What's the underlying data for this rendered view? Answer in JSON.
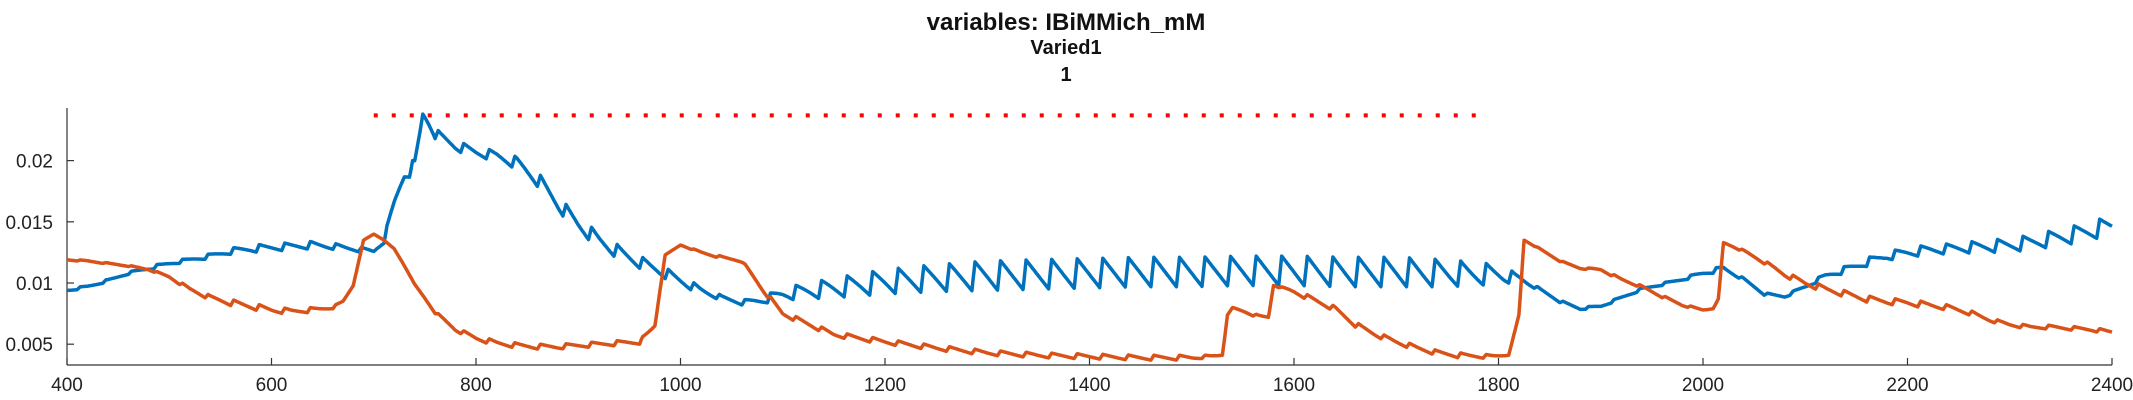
{
  "chart_data": {
    "type": "line",
    "title": "variables: IBiMMich_mM",
    "subtitle": [
      "Varied1",
      "1"
    ],
    "xlabel": "",
    "ylabel": "",
    "xlim": [
      400,
      2400
    ],
    "ylim": [
      0.0033,
      0.0243
    ],
    "xticks": [
      400,
      600,
      800,
      1000,
      1200,
      1400,
      1600,
      1800,
      2000,
      2200,
      2400
    ],
    "xtick_labels": [
      "400",
      "600",
      "800",
      "1000",
      "1200",
      "1400",
      "1600",
      "1800",
      "2000",
      "2200",
      "2400"
    ],
    "yticks": [
      0.005,
      0.01,
      0.015,
      0.02
    ],
    "ytick_labels": [
      "0.005",
      "0.01",
      "0.015",
      "0.02"
    ],
    "grid": false,
    "legend": "none",
    "series": [
      {
        "color": "#0072BD",
        "x": [
          400,
          420,
          440,
          460,
          480,
          500,
          520,
          540,
          560,
          580,
          600,
          620,
          640,
          660,
          680,
          690,
          700,
          710,
          720,
          730,
          740,
          748,
          760,
          780,
          800,
          820,
          840,
          860,
          880,
          900,
          920,
          940,
          960,
          980,
          1000,
          1020,
          1040,
          1060,
          1080,
          1100,
          1150,
          1200,
          1250,
          1300,
          1350,
          1400,
          1450,
          1500,
          1550,
          1600,
          1650,
          1700,
          1750,
          1800,
          1820,
          1840,
          1860,
          1880,
          1900,
          1920,
          1940,
          1960,
          1980,
          2000,
          2020,
          2040,
          2060,
          2080,
          2100,
          2120,
          2140,
          2160,
          2180,
          2200,
          2220,
          2240,
          2260,
          2280,
          2300,
          2320,
          2340,
          2360,
          2380,
          2400
        ],
        "y": [
          0.0094,
          0.0097,
          0.0102,
          0.0108,
          0.0112,
          0.0116,
          0.0119,
          0.0122,
          0.0126,
          0.0128,
          0.0129,
          0.013,
          0.0131,
          0.013,
          0.0128,
          0.0127,
          0.0126,
          0.0135,
          0.0165,
          0.019,
          0.0195,
          0.0238,
          0.0222,
          0.0212,
          0.0207,
          0.0204,
          0.0198,
          0.0185,
          0.0165,
          0.0148,
          0.0135,
          0.0125,
          0.0117,
          0.011,
          0.0102,
          0.0094,
          0.0088,
          0.0084,
          0.0086,
          0.0091,
          0.0096,
          0.0101,
          0.0104,
          0.0106,
          0.0107,
          0.0108,
          0.0109,
          0.0109,
          0.011,
          0.011,
          0.0109,
          0.0109,
          0.0108,
          0.0107,
          0.0104,
          0.0095,
          0.0085,
          0.0079,
          0.0081,
          0.0088,
          0.0095,
          0.0099,
          0.0103,
          0.0108,
          0.0112,
          0.0103,
          0.0091,
          0.0089,
          0.0097,
          0.0106,
          0.0111,
          0.0117,
          0.0122,
          0.0125,
          0.0127,
          0.0128,
          0.0129,
          0.013,
          0.0131,
          0.0133,
          0.0136,
          0.0139,
          0.0143,
          0.0147
        ],
        "ripple_amplitude": [
          0.0002,
          0.0002,
          0.0002,
          0.0002,
          0.0003,
          0.0003,
          0.0003,
          0.0004,
          0.0005,
          0.0006,
          0.0006,
          0.0006,
          0.0006,
          0.0005,
          0.0004,
          0.0004,
          0.0004,
          0.0005,
          0.0008,
          0.0012,
          0.0012,
          0.0,
          0.0008,
          0.0008,
          0.0008,
          0.0008,
          0.001,
          0.0012,
          0.0012,
          0.0012,
          0.0012,
          0.0011,
          0.001,
          0.0009,
          0.0008,
          0.0006,
          0.0004,
          0.0004,
          0.0006,
          0.001,
          0.0016,
          0.002,
          0.0022,
          0.0024,
          0.0024,
          0.0024,
          0.0024,
          0.0024,
          0.0024,
          0.0024,
          0.0024,
          0.0024,
          0.0022,
          0.0016,
          0.0006,
          0.0002,
          0.0002,
          0.0002,
          0.0002,
          0.0002,
          0.0002,
          0.0002,
          0.0002,
          0.0004,
          0.0004,
          0.0002,
          0.0002,
          0.0002,
          0.0003,
          0.0004,
          0.0006,
          0.0007,
          0.0007,
          0.0008,
          0.0008,
          0.0008,
          0.0009,
          0.001,
          0.0011,
          0.0012,
          0.0013,
          0.0014,
          0.0015,
          0.0015
        ]
      },
      {
        "color": "#D95319",
        "x": [
          400,
          420,
          440,
          460,
          480,
          500,
          520,
          540,
          560,
          580,
          600,
          620,
          640,
          660,
          670,
          680,
          690,
          700,
          710,
          720,
          730,
          740,
          760,
          780,
          800,
          820,
          840,
          860,
          880,
          900,
          920,
          940,
          960,
          975,
          985,
          1000,
          1020,
          1040,
          1060,
          1080,
          1100,
          1150,
          1200,
          1250,
          1300,
          1350,
          1400,
          1450,
          1500,
          1530,
          1535,
          1540,
          1560,
          1575,
          1580,
          1600,
          1620,
          1640,
          1660,
          1680,
          1700,
          1720,
          1740,
          1760,
          1790,
          1810,
          1820,
          1825,
          1840,
          1860,
          1880,
          1900,
          1920,
          1940,
          1960,
          1980,
          2000,
          2010,
          2015,
          2020,
          2040,
          2060,
          2080,
          2100,
          2120,
          2140,
          2160,
          2180,
          2200,
          2220,
          2240,
          2260,
          2280,
          2300,
          2320,
          2340,
          2360,
          2380,
          2400
        ],
        "y": [
          0.0119,
          0.0118,
          0.0116,
          0.0114,
          0.0111,
          0.0105,
          0.0095,
          0.0088,
          0.0084,
          0.0081,
          0.0078,
          0.0077,
          0.0078,
          0.008,
          0.0085,
          0.0098,
          0.0135,
          0.014,
          0.0135,
          0.0128,
          0.0114,
          0.0099,
          0.0076,
          0.0062,
          0.0055,
          0.0051,
          0.0049,
          0.0048,
          0.0048,
          0.0049,
          0.005,
          0.0051,
          0.0052,
          0.0065,
          0.0123,
          0.0131,
          0.0125,
          0.0121,
          0.0118,
          0.0095,
          0.0075,
          0.0058,
          0.0052,
          0.0047,
          0.0043,
          0.0041,
          0.004,
          0.0039,
          0.0039,
          0.0041,
          0.0074,
          0.008,
          0.0074,
          0.0072,
          0.0098,
          0.0093,
          0.0086,
          0.0079,
          0.0066,
          0.0058,
          0.0052,
          0.0047,
          0.0043,
          0.0041,
          0.004,
          0.0041,
          0.0074,
          0.0135,
          0.0128,
          0.0118,
          0.0112,
          0.0111,
          0.0103,
          0.0097,
          0.0089,
          0.0082,
          0.0078,
          0.0079,
          0.0087,
          0.0133,
          0.0126,
          0.0117,
          0.0107,
          0.01,
          0.0095,
          0.0091,
          0.0087,
          0.0085,
          0.0084,
          0.0082,
          0.008,
          0.0076,
          0.007,
          0.0066,
          0.0064,
          0.0064,
          0.0063,
          0.0062,
          0.006
        ],
        "ripple_amplitude": [
          0.0001,
          0.0001,
          0.0001,
          0.0001,
          0.0001,
          0.0002,
          0.0003,
          0.0004,
          0.0005,
          0.0005,
          0.0005,
          0.0004,
          0.0004,
          0.0002,
          0.0001,
          0.0,
          0.0,
          0.0,
          0.0,
          0.0,
          0.0,
          0.0,
          0.0002,
          0.0003,
          0.0004,
          0.0004,
          0.0004,
          0.0004,
          0.0004,
          0.0004,
          0.0004,
          0.0004,
          0.0004,
          0.0,
          0.0,
          0.0,
          0.0002,
          0.0002,
          0.0002,
          0.0003,
          0.0004,
          0.0004,
          0.0004,
          0.0004,
          0.0004,
          0.0004,
          0.0004,
          0.0004,
          0.0004,
          0.0,
          0.0,
          0.0,
          0.0002,
          0.0,
          0.0,
          0.0004,
          0.0004,
          0.0004,
          0.0004,
          0.0004,
          0.0004,
          0.0004,
          0.0004,
          0.0004,
          0.0003,
          0.0,
          0.0,
          0.0,
          0.0001,
          0.0001,
          0.0001,
          0.0002,
          0.0002,
          0.0002,
          0.0002,
          0.0002,
          0.0001,
          0.0,
          0.0,
          0.0,
          0.0002,
          0.0003,
          0.0004,
          0.0005,
          0.0005,
          0.0005,
          0.0005,
          0.0005,
          0.0005,
          0.0005,
          0.0004,
          0.0004,
          0.0003,
          0.0003,
          0.0003,
          0.0003,
          0.0003,
          0.0003,
          0.0003
        ]
      },
      {
        "color": "#FF0000",
        "style": "dotted",
        "x": [
          700,
          1790
        ],
        "y": [
          0.0237,
          0.0237
        ]
      }
    ]
  }
}
